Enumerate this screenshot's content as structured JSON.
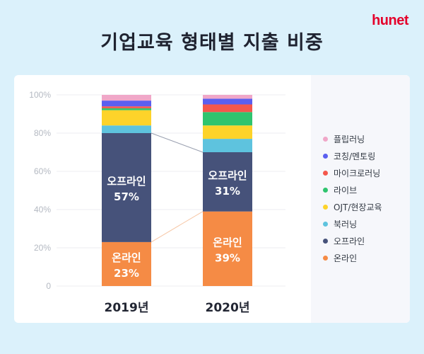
{
  "brand": "hunet",
  "chart_data": {
    "type": "bar",
    "stacked": true,
    "title": "기업교육 형태별 지출 비중",
    "categories": [
      "2019년",
      "2020년"
    ],
    "ylim": [
      0,
      100
    ],
    "yticks": [
      "0",
      "20%",
      "40%",
      "60%",
      "80%",
      "100%"
    ],
    "grid": true,
    "legend_position": "right",
    "series": [
      {
        "name": "온라인",
        "color": "#f58b45",
        "values": [
          23,
          39
        ],
        "labels": [
          "온라인\n23%",
          "온라인\n39%"
        ]
      },
      {
        "name": "오프라인",
        "color": "#46527a",
        "values": [
          57,
          31
        ],
        "labels": [
          "오프라인\n57%",
          "오프라인\n31%"
        ]
      },
      {
        "name": "북러닝",
        "color": "#5ec3de",
        "values": [
          4,
          7
        ]
      },
      {
        "name": "OJT/현장교육",
        "color": "#fdd32a",
        "values": [
          8,
          7
        ]
      },
      {
        "name": "라이브",
        "color": "#2fc46e",
        "values": [
          1,
          7
        ]
      },
      {
        "name": "마이크로러닝",
        "color": "#f4574c",
        "values": [
          1,
          4
        ]
      },
      {
        "name": "코칭/멘토링",
        "color": "#5a5ff0",
        "values": [
          3,
          3
        ]
      },
      {
        "name": "플립러닝",
        "color": "#f0a7c8",
        "values": [
          3,
          2
        ]
      }
    ]
  }
}
